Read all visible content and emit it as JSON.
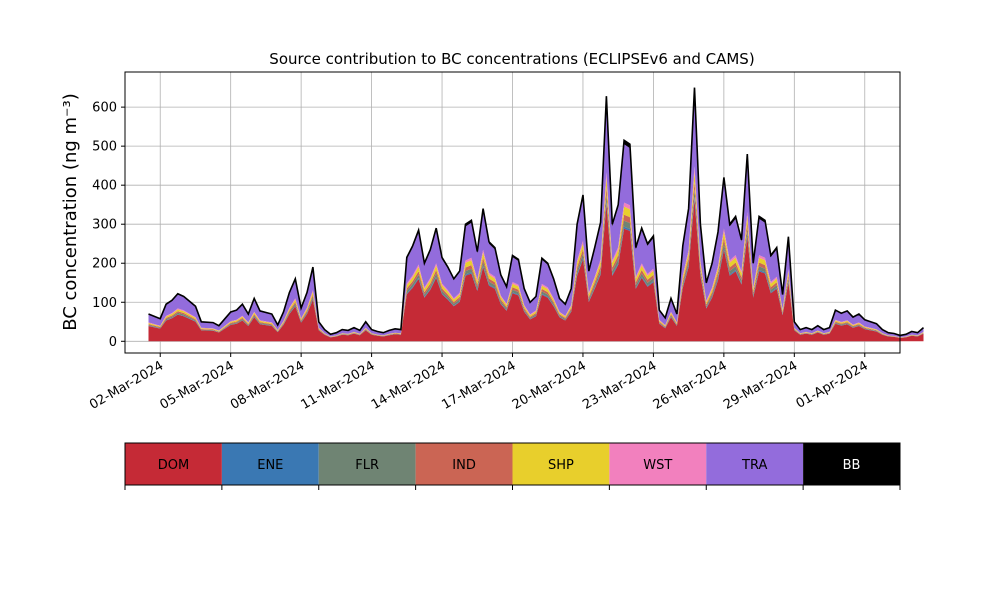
{
  "chart_data": {
    "type": "area",
    "stacked": true,
    "title": "Source contribution to BC concentrations (ECLIPSEv6 and CAMS)",
    "ylabel": "BC concentration (ng m⁻³)",
    "ylim": [
      -30,
      690
    ],
    "yticks": [
      0,
      100,
      200,
      300,
      400,
      500,
      600
    ],
    "xlim": [
      "2024-02-29T12:00",
      "2024-04-02T12:00"
    ],
    "xticks": [
      "2024-03-02",
      "2024-03-05",
      "2024-03-08",
      "2024-03-11",
      "2024-03-14",
      "2024-03-17",
      "2024-03-20",
      "2024-03-23",
      "2024-03-26",
      "2024-03-29",
      "2024-04-01"
    ],
    "xtick_labels": [
      "02-Mar-2024",
      "05-Mar-2024",
      "08-Mar-2024",
      "11-Mar-2024",
      "14-Mar-2024",
      "17-Mar-2024",
      "20-Mar-2024",
      "23-Mar-2024",
      "26-Mar-2024",
      "29-Mar-2024",
      "01-Apr-2024"
    ],
    "grid": true,
    "total_outline_color": "#000000",
    "total": [
      [
        "2024-03-01T12:00",
        70
      ],
      [
        "2024-03-02T00:00",
        58
      ],
      [
        "2024-03-02T06:00",
        95
      ],
      [
        "2024-03-02T12:00",
        105
      ],
      [
        "2024-03-02T18:00",
        122
      ],
      [
        "2024-03-03T00:00",
        115
      ],
      [
        "2024-03-03T12:00",
        90
      ],
      [
        "2024-03-03T18:00",
        50
      ],
      [
        "2024-03-04T06:00",
        48
      ],
      [
        "2024-03-04T12:00",
        40
      ],
      [
        "2024-03-05T00:00",
        75
      ],
      [
        "2024-03-05T06:00",
        80
      ],
      [
        "2024-03-05T12:00",
        95
      ],
      [
        "2024-03-05T18:00",
        70
      ],
      [
        "2024-03-06T00:00",
        110
      ],
      [
        "2024-03-06T06:00",
        78
      ],
      [
        "2024-03-06T18:00",
        70
      ],
      [
        "2024-03-07T00:00",
        42
      ],
      [
        "2024-03-07T06:00",
        75
      ],
      [
        "2024-03-07T12:00",
        125
      ],
      [
        "2024-03-07T18:00",
        160
      ],
      [
        "2024-03-08T00:00",
        85
      ],
      [
        "2024-03-08T06:00",
        125
      ],
      [
        "2024-03-08T12:00",
        190
      ],
      [
        "2024-03-08T18:00",
        50
      ],
      [
        "2024-03-09T00:00",
        30
      ],
      [
        "2024-03-09T06:00",
        18
      ],
      [
        "2024-03-09T12:00",
        22
      ],
      [
        "2024-03-09T18:00",
        30
      ],
      [
        "2024-03-10T00:00",
        28
      ],
      [
        "2024-03-10T06:00",
        35
      ],
      [
        "2024-03-10T12:00",
        28
      ],
      [
        "2024-03-10T18:00",
        50
      ],
      [
        "2024-03-11T00:00",
        30
      ],
      [
        "2024-03-11T06:00",
        25
      ],
      [
        "2024-03-11T12:00",
        22
      ],
      [
        "2024-03-11T18:00",
        28
      ],
      [
        "2024-03-12T00:00",
        32
      ],
      [
        "2024-03-12T06:00",
        30
      ],
      [
        "2024-03-12T12:00",
        215
      ],
      [
        "2024-03-12T18:00",
        245
      ],
      [
        "2024-03-13T00:00",
        285
      ],
      [
        "2024-03-13T06:00",
        200
      ],
      [
        "2024-03-13T12:00",
        235
      ],
      [
        "2024-03-13T18:00",
        290
      ],
      [
        "2024-03-14T00:00",
        215
      ],
      [
        "2024-03-14T06:00",
        190
      ],
      [
        "2024-03-14T12:00",
        160
      ],
      [
        "2024-03-14T18:00",
        180
      ],
      [
        "2024-03-15T00:00",
        300
      ],
      [
        "2024-03-15T06:00",
        310
      ],
      [
        "2024-03-15T12:00",
        230
      ],
      [
        "2024-03-15T18:00",
        340
      ],
      [
        "2024-03-16T00:00",
        255
      ],
      [
        "2024-03-16T06:00",
        240
      ],
      [
        "2024-03-16T12:00",
        170
      ],
      [
        "2024-03-16T18:00",
        140
      ],
      [
        "2024-03-17T00:00",
        220
      ],
      [
        "2024-03-17T06:00",
        210
      ],
      [
        "2024-03-17T12:00",
        135
      ],
      [
        "2024-03-17T18:00",
        100
      ],
      [
        "2024-03-18T00:00",
        115
      ],
      [
        "2024-03-18T06:00",
        213
      ],
      [
        "2024-03-18T12:00",
        200
      ],
      [
        "2024-03-18T18:00",
        160
      ],
      [
        "2024-03-19T00:00",
        110
      ],
      [
        "2024-03-19T06:00",
        95
      ],
      [
        "2024-03-19T12:00",
        135
      ],
      [
        "2024-03-19T18:00",
        300
      ],
      [
        "2024-03-20T00:00",
        375
      ],
      [
        "2024-03-20T06:00",
        180
      ],
      [
        "2024-03-20T12:00",
        240
      ],
      [
        "2024-03-20T18:00",
        305
      ],
      [
        "2024-03-21T00:00",
        628
      ],
      [
        "2024-03-21T06:00",
        300
      ],
      [
        "2024-03-21T12:00",
        350
      ],
      [
        "2024-03-21T18:00",
        515
      ],
      [
        "2024-03-22T00:00",
        505
      ],
      [
        "2024-03-22T06:00",
        240
      ],
      [
        "2024-03-22T12:00",
        290
      ],
      [
        "2024-03-22T18:00",
        250
      ],
      [
        "2024-03-23T00:00",
        270
      ],
      [
        "2024-03-23T06:00",
        80
      ],
      [
        "2024-03-23T12:00",
        60
      ],
      [
        "2024-03-23T18:00",
        110
      ],
      [
        "2024-03-24T00:00",
        70
      ],
      [
        "2024-03-24T06:00",
        245
      ],
      [
        "2024-03-24T12:00",
        340
      ],
      [
        "2024-03-24T18:00",
        650
      ],
      [
        "2024-03-25T00:00",
        300
      ],
      [
        "2024-03-25T06:00",
        150
      ],
      [
        "2024-03-25T12:00",
        200
      ],
      [
        "2024-03-25T18:00",
        280
      ],
      [
        "2024-03-26T00:00",
        420
      ],
      [
        "2024-03-26T06:00",
        300
      ],
      [
        "2024-03-26T12:00",
        320
      ],
      [
        "2024-03-26T18:00",
        260
      ],
      [
        "2024-03-27T00:00",
        480
      ],
      [
        "2024-03-27T06:00",
        200
      ],
      [
        "2024-03-27T12:00",
        320
      ],
      [
        "2024-03-27T18:00",
        310
      ],
      [
        "2024-03-28T00:00",
        220
      ],
      [
        "2024-03-28T06:00",
        240
      ],
      [
        "2024-03-28T12:00",
        120
      ],
      [
        "2024-03-28T18:00",
        268
      ],
      [
        "2024-03-29T00:00",
        50
      ],
      [
        "2024-03-29T06:00",
        30
      ],
      [
        "2024-03-29T12:00",
        35
      ],
      [
        "2024-03-29T18:00",
        30
      ],
      [
        "2024-03-30T00:00",
        40
      ],
      [
        "2024-03-30T06:00",
        30
      ],
      [
        "2024-03-30T12:00",
        35
      ],
      [
        "2024-03-30T18:00",
        80
      ],
      [
        "2024-03-31T00:00",
        72
      ],
      [
        "2024-03-31T06:00",
        78
      ],
      [
        "2024-03-31T12:00",
        62
      ],
      [
        "2024-03-31T18:00",
        70
      ],
      [
        "2024-04-01T00:00",
        55
      ],
      [
        "2024-04-01T06:00",
        50
      ],
      [
        "2024-04-01T12:00",
        45
      ],
      [
        "2024-04-01T18:00",
        30
      ],
      [
        "2024-04-02T00:00",
        22
      ],
      [
        "2024-04-02T06:00",
        20
      ],
      [
        "2024-04-02T12:00",
        15
      ],
      [
        "2024-04-02T18:00",
        18
      ],
      [
        "2024-04-03T00:00",
        25
      ],
      [
        "2024-04-03T06:00",
        22
      ],
      [
        "2024-04-03T12:00",
        35
      ]
    ],
    "series": [
      {
        "name": "DOM",
        "color": "#c52a36",
        "share": 0.56
      },
      {
        "name": "ENE",
        "color": "#3a78b3",
        "share": 0.01
      },
      {
        "name": "FLR",
        "color": "#6f8473",
        "share": 0.03
      },
      {
        "name": "IND",
        "color": "#cb6554",
        "share": 0.03
      },
      {
        "name": "SHP",
        "color": "#e8cf2c",
        "share": 0.04
      },
      {
        "name": "WST",
        "color": "#f280be",
        "share": 0.02
      },
      {
        "name": "TRA",
        "color": "#936cdc",
        "share": 0.29
      },
      {
        "name": "BB",
        "color": "#000000",
        "share": 0.02
      }
    ],
    "legend_placement": "bottom"
  }
}
